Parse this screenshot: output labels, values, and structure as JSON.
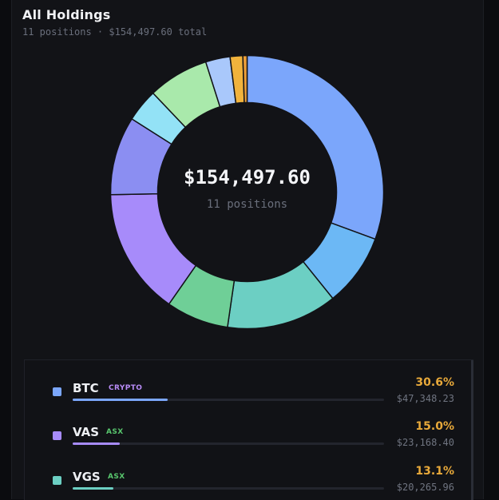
{
  "header": {
    "title": "All Holdings",
    "subtitle": "11 positions · $154,497.60 total"
  },
  "donut": {
    "center_value": "$154,497.60",
    "center_label": "11 positions",
    "segments": [
      {
        "color": "#7ba6fb",
        "pct": 30.6
      },
      {
        "color": "#6cb8f5",
        "pct": 8.6
      },
      {
        "color": "#6ccfc3",
        "pct": 13.1
      },
      {
        "color": "#6fcf97",
        "pct": 7.4
      },
      {
        "color": "#a78bfa",
        "pct": 15.0
      },
      {
        "color": "#8b8ef2",
        "pct": 9.3
      },
      {
        "color": "#93e2f6",
        "pct": 3.9
      },
      {
        "color": "#a9e9ab",
        "pct": 7.2
      },
      {
        "color": "#a9c8fb",
        "pct": 2.9
      },
      {
        "color": "#f1b33c",
        "pct": 1.5
      },
      {
        "color": "#ec9f3a",
        "pct": 0.5
      }
    ]
  },
  "holdings": [
    {
      "symbol": "BTC",
      "tag": "CRYPTO",
      "tag_color": "#b98cf7",
      "swatch": "#7ba6fb",
      "fill": 0.306,
      "percent": "30.6%",
      "amount": "$47,348.23"
    },
    {
      "symbol": "VAS",
      "tag": "ASX",
      "tag_color": "#58c56d",
      "swatch": "#a78bfa",
      "fill": 0.15,
      "percent": "15.0%",
      "amount": "$23,168.40"
    },
    {
      "symbol": "VGS",
      "tag": "ASX",
      "tag_color": "#58c56d",
      "swatch": "#6ccfc3",
      "fill": 0.131,
      "percent": "13.1%",
      "amount": "$20,265.96"
    }
  ]
}
